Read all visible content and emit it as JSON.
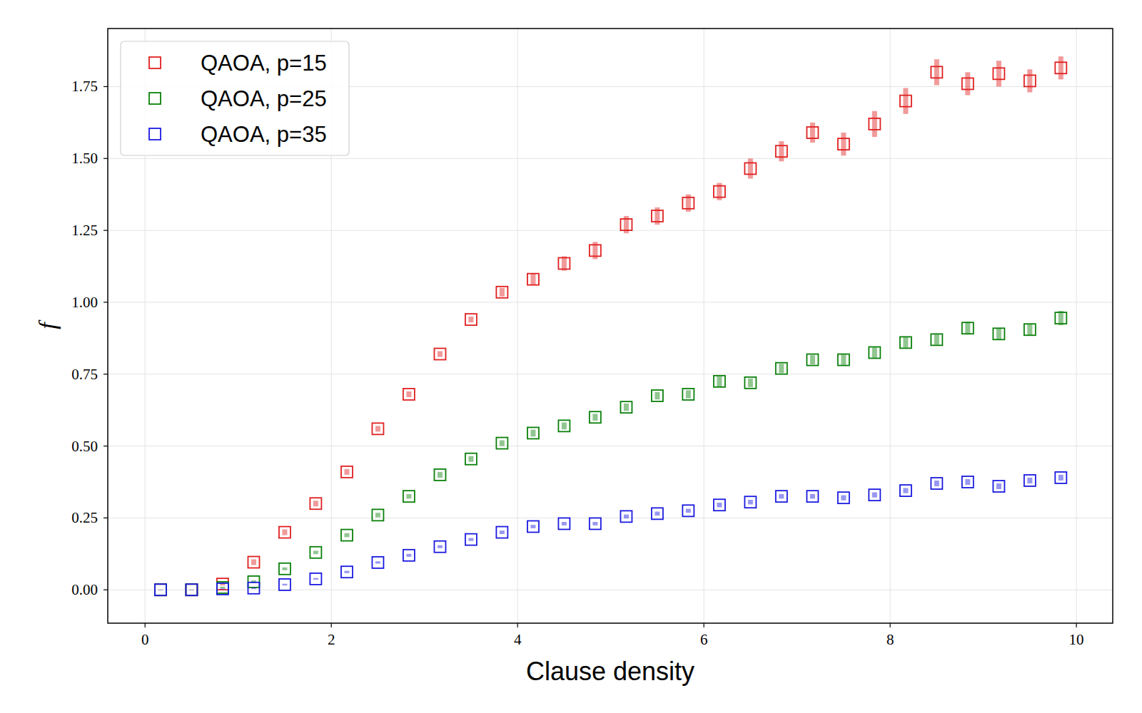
{
  "chart_data": {
    "type": "scatter",
    "x_label": "Clause density",
    "y_label": "f",
    "x": [
      0.167,
      0.5,
      0.833,
      1.167,
      1.5,
      1.833,
      2.167,
      2.5,
      2.833,
      3.167,
      3.5,
      3.833,
      4.167,
      4.5,
      4.833,
      5.167,
      5.5,
      5.833,
      6.167,
      6.5,
      6.833,
      7.167,
      7.5,
      7.833,
      8.167,
      8.5,
      8.833,
      9.167,
      9.5,
      9.833
    ],
    "series": [
      {
        "name": "QAOA, p=15",
        "color": "#e02020",
        "marker": "square",
        "values": [
          0,
          0,
          0.02,
          0.096,
          0.2,
          0.3,
          0.41,
          0.56,
          0.68,
          0.82,
          0.94,
          1.035,
          1.08,
          1.135,
          1.18,
          1.27,
          1.3,
          1.345,
          1.385,
          1.465,
          1.525,
          1.59,
          1.55,
          1.62,
          1.7,
          1.8,
          1.76,
          1.795,
          1.77,
          1.815
        ],
        "errors": [
          0,
          0,
          0.005,
          0.01,
          0.01,
          0.01,
          0.01,
          0.01,
          0.01,
          0.01,
          0.01,
          0.015,
          0.02,
          0.025,
          0.03,
          0.03,
          0.03,
          0.03,
          0.03,
          0.035,
          0.035,
          0.035,
          0.04,
          0.045,
          0.045,
          0.045,
          0.04,
          0.045,
          0.04,
          0.04
        ]
      },
      {
        "name": "QAOA, p=25",
        "color": "#0a800a",
        "marker": "square",
        "values": [
          0,
          0,
          0.008,
          0.028,
          0.073,
          0.13,
          0.19,
          0.26,
          0.325,
          0.4,
          0.455,
          0.51,
          0.545,
          0.57,
          0.6,
          0.635,
          0.675,
          0.68,
          0.725,
          0.72,
          0.77,
          0.8,
          0.8,
          0.825,
          0.86,
          0.87,
          0.91,
          0.89,
          0.905,
          0.945
        ],
        "errors": [
          0,
          0,
          0.003,
          0.005,
          0.005,
          0.006,
          0.007,
          0.008,
          0.008,
          0.01,
          0.01,
          0.01,
          0.012,
          0.012,
          0.012,
          0.013,
          0.013,
          0.014,
          0.018,
          0.015,
          0.016,
          0.016,
          0.018,
          0.018,
          0.018,
          0.018,
          0.022,
          0.02,
          0.02,
          0.025
        ]
      },
      {
        "name": "QAOA, p=35",
        "color": "#1a1ae0",
        "marker": "square",
        "values": [
          0,
          0,
          0.003,
          0.006,
          0.018,
          0.038,
          0.062,
          0.095,
          0.12,
          0.15,
          0.175,
          0.2,
          0.22,
          0.23,
          0.23,
          0.255,
          0.265,
          0.275,
          0.295,
          0.305,
          0.325,
          0.325,
          0.32,
          0.33,
          0.345,
          0.37,
          0.375,
          0.36,
          0.38,
          0.39
        ],
        "errors": [
          0,
          0,
          0.002,
          0.003,
          0.003,
          0.003,
          0.004,
          0.004,
          0.005,
          0.005,
          0.005,
          0.006,
          0.006,
          0.006,
          0.006,
          0.007,
          0.007,
          0.007,
          0.008,
          0.008,
          0.008,
          0.008,
          0.009,
          0.009,
          0.009,
          0.01,
          0.01,
          0.01,
          0.01,
          0.01
        ]
      }
    ],
    "xlim": [
      -0.4,
      10.39
    ],
    "ylim": [
      -0.116,
      1.952
    ],
    "xticks": [
      0,
      2,
      4,
      6,
      8,
      10
    ],
    "yticks": [
      {
        "value": 0,
        "label": "0.00"
      },
      0.25,
      {
        "value": 0.5,
        "label": "0.50"
      },
      0.75,
      {
        "value": 1,
        "label": "1.00"
      },
      1.25,
      {
        "value": 1.5,
        "label": "1.50"
      },
      1.75
    ],
    "grid": true,
    "legend": "upper left"
  }
}
